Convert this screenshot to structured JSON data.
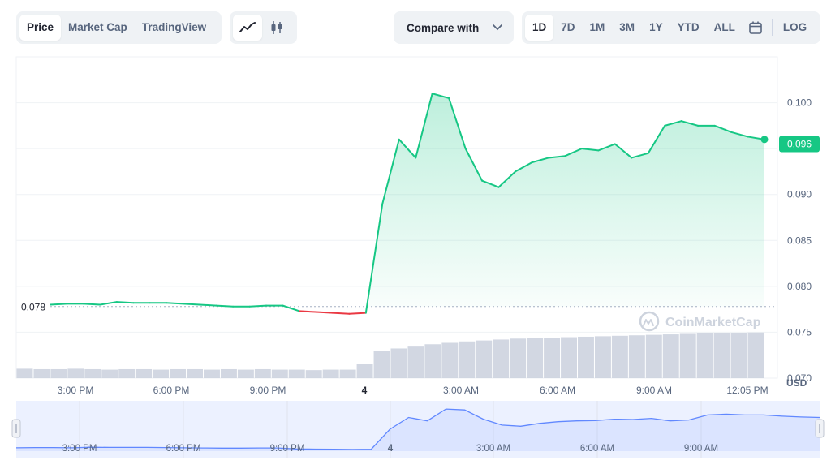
{
  "toolbar": {
    "view_tabs": [
      "Price",
      "Market Cap",
      "TradingView"
    ],
    "active_view": "Price",
    "chart_type_icons": [
      "line-chart-icon",
      "candlestick-icon"
    ],
    "compare_label": "Compare with",
    "ranges": [
      "1D",
      "7D",
      "1M",
      "3M",
      "1Y",
      "YTD",
      "ALL"
    ],
    "active_range": "1D",
    "calendar_icon": "calendar-icon",
    "log_label": "LOG"
  },
  "watermark": "CoinMarketCap",
  "colors": {
    "up": "#16c784",
    "down": "#ea3943",
    "navigator": "#6188ff",
    "grid": "#eff2f5"
  },
  "chart_data": {
    "type": "line",
    "x": [
      "15:00",
      "15:30",
      "16:00",
      "16:30",
      "17:00",
      "17:30",
      "18:00",
      "18:30",
      "19:00",
      "19:30",
      "20:00",
      "20:30",
      "21:00",
      "21:30",
      "22:00",
      "22:30",
      "23:00",
      "23:30",
      "00:00",
      "00:30",
      "01:00",
      "01:30",
      "02:00",
      "02:30",
      "03:00",
      "03:30",
      "04:00",
      "04:30",
      "05:00",
      "05:30",
      "06:00",
      "06:30",
      "07:00",
      "07:30",
      "08:00",
      "08:30",
      "09:00",
      "09:30",
      "10:00",
      "10:30",
      "11:00",
      "11:30",
      "12:00",
      "12:30"
    ],
    "series": [
      {
        "values": [
          0.078,
          0.0781,
          0.0781,
          0.078,
          0.0783,
          0.0782,
          0.0782,
          0.0782,
          0.0781,
          0.078,
          0.0779,
          0.0778,
          0.0778,
          0.0779,
          0.0779,
          0.0773,
          0.0772,
          0.0771,
          0.077,
          0.0771,
          0.089,
          0.096,
          0.094,
          0.101,
          0.1005,
          0.095,
          0.0915,
          0.0908,
          0.0925,
          0.0935,
          0.094,
          0.0942,
          0.095,
          0.0948,
          0.0955,
          0.094,
          0.0945,
          0.0975,
          0.098,
          0.0975,
          0.0975,
          0.0968,
          0.0963,
          0.096
        ]
      }
    ],
    "x_ticks": [
      "3:00 PM",
      "6:00 PM",
      "9:00 PM",
      "4",
      "3:00 AM",
      "6:00 AM",
      "9:00 AM",
      "12:05 PM"
    ],
    "navigator_ticks": [
      "3:00 PM",
      "6:00 PM",
      "9:00 PM",
      "4",
      "3:00 AM",
      "6:00 AM",
      "9:00 AM"
    ],
    "y_ticks": [
      "0.100",
      "0.095",
      "0.090",
      "0.085",
      "0.080",
      "0.075",
      "0.070"
    ],
    "ylim": [
      0.07,
      0.105
    ],
    "y_unit": "USD",
    "open_price_label": "0.078",
    "open_price": 0.0778,
    "current_price_label": "0.096",
    "current_price": 0.0955,
    "volume": [
      0.2,
      0.19,
      0.19,
      0.2,
      0.19,
      0.18,
      0.19,
      0.19,
      0.18,
      0.19,
      0.19,
      0.18,
      0.19,
      0.18,
      0.19,
      0.18,
      0.18,
      0.17,
      0.18,
      0.18,
      0.3,
      0.58,
      0.63,
      0.67,
      0.72,
      0.75,
      0.78,
      0.8,
      0.82,
      0.84,
      0.85,
      0.86,
      0.87,
      0.88,
      0.89,
      0.9,
      0.91,
      0.92,
      0.93,
      0.94,
      0.95,
      0.96,
      0.96,
      0.97
    ],
    "grid": true,
    "legend": false
  }
}
